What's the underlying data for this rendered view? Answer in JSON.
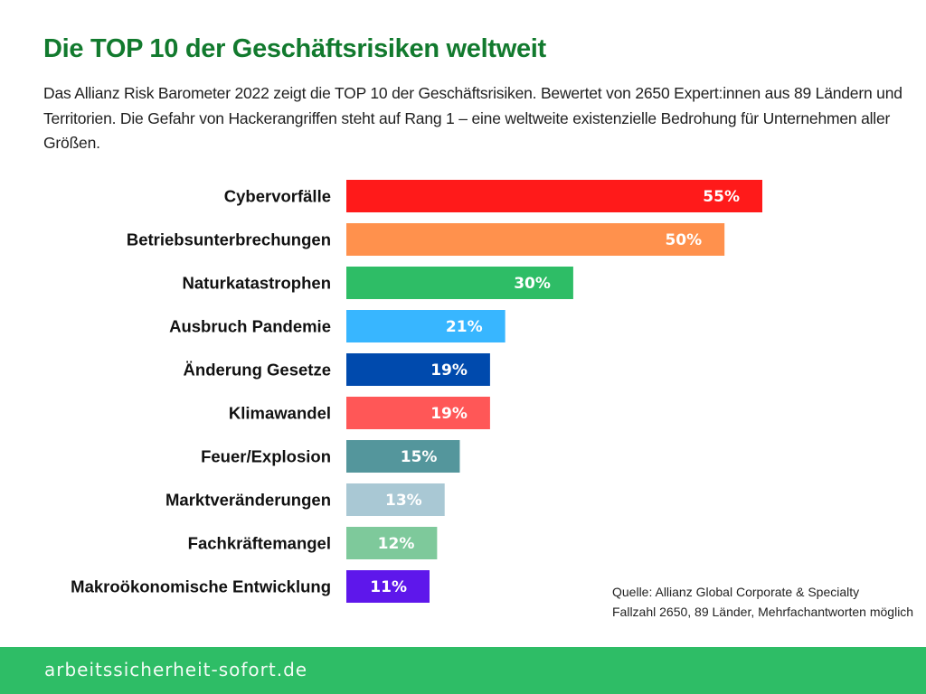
{
  "header": {
    "title": "Die TOP 10 der Geschäftsrisiken weltweit",
    "subtitle": "Das Allianz Risk Barometer 2022 zeigt die TOP 10 der Geschäftsrisiken. Bewertet von 2650 Expert:innen aus 89 Ländern und Territorien. Die Gefahr von Hackerangriffen steht auf Rang 1 – eine weltweite existenzielle Bedrohung für Unternehmen aller Größen."
  },
  "chart_data": {
    "type": "bar",
    "orientation": "horizontal",
    "title": "Die TOP 10 der Geschäftsrisiken weltweit",
    "xlabel": "",
    "ylabel": "",
    "xlim": [
      0,
      55
    ],
    "grid": false,
    "legend": "none",
    "value_suffix": "%",
    "categories": [
      "Cybervorfälle",
      "Betriebsunterbrechungen",
      "Naturkatastrophen",
      "Ausbruch Pandemie",
      "Änderung Gesetze",
      "Klimawandel",
      "Feuer/Explosion",
      "Marktveränderungen",
      "Fachkräftemangel",
      "Makroökonomische Entwicklung"
    ],
    "values": [
      55,
      50,
      30,
      21,
      19,
      19,
      15,
      13,
      12,
      11
    ],
    "labels": [
      "55%",
      "50%",
      "30%",
      "21%",
      "19%",
      "19%",
      "15%",
      "13%",
      "12%",
      "11%"
    ],
    "colors": [
      "#ff1a1a",
      "#ff914d",
      "#2ebd66",
      "#38b6ff",
      "#004aad",
      "#ff5757",
      "#54969c",
      "#a9c8d4",
      "#7ec99b",
      "#5e17eb"
    ]
  },
  "source": {
    "line1": "Quelle: Allianz Global Corporate & Specialty",
    "line2": "Fallzahl 2650, 89 Länder, Mehrfachantworten möglich"
  },
  "footer": {
    "text": "arbeitssicherheit-sofort.de",
    "color": "#2ebd66"
  }
}
